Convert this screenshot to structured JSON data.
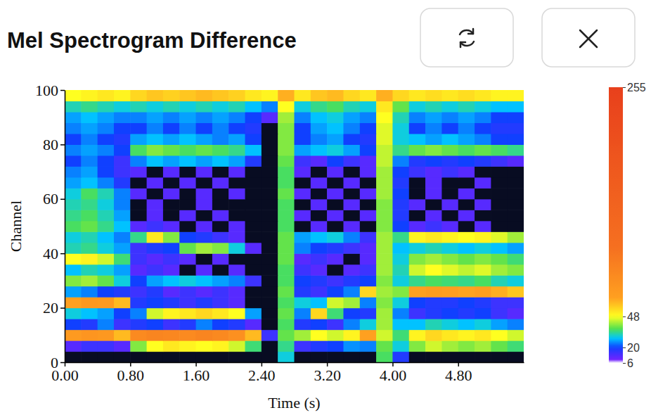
{
  "chart_data": {
    "type": "heatmap",
    "title": "Mel Spectrogram Difference",
    "x_label": "Time (s)",
    "y_label": "Channel",
    "x_edges": [
      0,
      0.2,
      0.4,
      0.6,
      0.8,
      1,
      1.2,
      1.4,
      1.6,
      1.8,
      2,
      2.2,
      2.4,
      2.6,
      2.8,
      3,
      3.2,
      3.4,
      3.6,
      3.8,
      4,
      4.2,
      4.4,
      4.6,
      4.8,
      5,
      5.2,
      5.4,
      5.6
    ],
    "y_edges": [
      0,
      4,
      8,
      12,
      16,
      20,
      24,
      28,
      32,
      36,
      40,
      44,
      48,
      52,
      56,
      60,
      64,
      68,
      72,
      76,
      80,
      84,
      88,
      92,
      96,
      100
    ],
    "z": [
      [
        2,
        3,
        3,
        3,
        4,
        3,
        3,
        4,
        3,
        3,
        3,
        2,
        2,
        30,
        3,
        3,
        2,
        3,
        4,
        36,
        18,
        3,
        3,
        2,
        3,
        3,
        2,
        2
      ],
      [
        12,
        15,
        15,
        12,
        40,
        48,
        52,
        50,
        48,
        50,
        45,
        35,
        4,
        34,
        15,
        18,
        20,
        25,
        24,
        38,
        30,
        40,
        45,
        42,
        40,
        42,
        38,
        35
      ],
      [
        70,
        75,
        72,
        60,
        85,
        90,
        88,
        85,
        90,
        86,
        80,
        60,
        15,
        38,
        42,
        48,
        45,
        50,
        65,
        45,
        35,
        50,
        55,
        52,
        50,
        52,
        48,
        45
      ],
      [
        20,
        18,
        24,
        15,
        18,
        20,
        15,
        18,
        24,
        20,
        18,
        12,
        3,
        36,
        18,
        20,
        15,
        24,
        30,
        42,
        28,
        28,
        32,
        30,
        28,
        30,
        26,
        24
      ],
      [
        30,
        28,
        26,
        20,
        24,
        45,
        50,
        52,
        55,
        52,
        48,
        26,
        4,
        38,
        24,
        55,
        35,
        20,
        18,
        42,
        24,
        15,
        18,
        20,
        18,
        20,
        15,
        12
      ],
      [
        65,
        72,
        70,
        60,
        18,
        20,
        18,
        15,
        18,
        15,
        12,
        4,
        3,
        36,
        30,
        28,
        45,
        42,
        24,
        40,
        30,
        20,
        18,
        18,
        20,
        18,
        15,
        15
      ],
      [
        26,
        24,
        20,
        18,
        15,
        18,
        12,
        15,
        12,
        15,
        12,
        4,
        3,
        38,
        18,
        15,
        20,
        24,
        55,
        42,
        40,
        65,
        68,
        66,
        64,
        66,
        62,
        58
      ],
      [
        40,
        42,
        38,
        30,
        20,
        26,
        28,
        30,
        28,
        26,
        24,
        15,
        3,
        36,
        20,
        18,
        15,
        18,
        20,
        40,
        30,
        34,
        36,
        35,
        34,
        36,
        32,
        30
      ],
      [
        28,
        32,
        30,
        26,
        12,
        15,
        12,
        4,
        12,
        4,
        12,
        4,
        2,
        36,
        15,
        12,
        4,
        12,
        15,
        42,
        32,
        45,
        48,
        46,
        44,
        46,
        42,
        40
      ],
      [
        48,
        50,
        45,
        35,
        15,
        12,
        15,
        12,
        4,
        12,
        4,
        3,
        2,
        38,
        12,
        15,
        12,
        4,
        12,
        42,
        30,
        40,
        42,
        40,
        38,
        40,
        38,
        35
      ],
      [
        32,
        34,
        30,
        26,
        15,
        18,
        20,
        38,
        42,
        40,
        30,
        12,
        3,
        38,
        24,
        20,
        18,
        15,
        12,
        42,
        28,
        30,
        32,
        30,
        28,
        30,
        28,
        26
      ],
      [
        30,
        32,
        28,
        24,
        34,
        52,
        40,
        20,
        18,
        15,
        12,
        4,
        2,
        38,
        26,
        28,
        30,
        24,
        15,
        42,
        34,
        50,
        52,
        50,
        48,
        50,
        46,
        42
      ],
      [
        36,
        38,
        34,
        28,
        12,
        15,
        12,
        4,
        12,
        4,
        12,
        3,
        2,
        36,
        4,
        12,
        4,
        12,
        4,
        40,
        20,
        12,
        15,
        12,
        4,
        12,
        4,
        3
      ],
      [
        34,
        36,
        32,
        26,
        4,
        12,
        4,
        12,
        4,
        12,
        4,
        3,
        2,
        36,
        12,
        4,
        12,
        4,
        12,
        40,
        18,
        4,
        12,
        4,
        12,
        4,
        3,
        3
      ],
      [
        32,
        34,
        30,
        24,
        4,
        12,
        4,
        4,
        12,
        4,
        4,
        3,
        2,
        36,
        4,
        12,
        4,
        12,
        4,
        40,
        18,
        12,
        4,
        12,
        4,
        12,
        4,
        3
      ],
      [
        30,
        36,
        32,
        24,
        12,
        4,
        12,
        4,
        12,
        4,
        12,
        3,
        2,
        38,
        12,
        4,
        12,
        4,
        12,
        42,
        20,
        4,
        12,
        4,
        12,
        4,
        3,
        3
      ],
      [
        26,
        28,
        24,
        18,
        4,
        12,
        4,
        12,
        4,
        12,
        4,
        3,
        2,
        36,
        4,
        12,
        4,
        12,
        4,
        42,
        18,
        4,
        12,
        4,
        4,
        12,
        4,
        3
      ],
      [
        24,
        26,
        20,
        15,
        12,
        4,
        12,
        4,
        12,
        4,
        12,
        3,
        2,
        36,
        12,
        4,
        12,
        4,
        12,
        42,
        20,
        15,
        12,
        15,
        12,
        4,
        3,
        3
      ],
      [
        20,
        24,
        20,
        15,
        24,
        28,
        26,
        28,
        26,
        28,
        26,
        18,
        3,
        38,
        15,
        12,
        20,
        15,
        12,
        44,
        24,
        18,
        20,
        18,
        20,
        18,
        15,
        12
      ],
      [
        24,
        26,
        24,
        20,
        36,
        40,
        38,
        36,
        38,
        36,
        34,
        28,
        4,
        40,
        26,
        28,
        30,
        26,
        20,
        44,
        34,
        38,
        40,
        38,
        36,
        38,
        36,
        34
      ],
      [
        20,
        24,
        20,
        18,
        26,
        28,
        26,
        28,
        26,
        24,
        26,
        20,
        3,
        40,
        20,
        24,
        26,
        20,
        18,
        46,
        30,
        28,
        26,
        28,
        26,
        24,
        20,
        20
      ],
      [
        24,
        26,
        24,
        20,
        20,
        24,
        20,
        24,
        20,
        24,
        20,
        18,
        4,
        40,
        20,
        26,
        28,
        24,
        20,
        46,
        30,
        20,
        24,
        20,
        24,
        20,
        18,
        18
      ],
      [
        26,
        28,
        26,
        24,
        24,
        26,
        24,
        26,
        24,
        26,
        24,
        20,
        12,
        42,
        24,
        28,
        30,
        26,
        24,
        48,
        32,
        24,
        26,
        24,
        26,
        24,
        20,
        20
      ],
      [
        32,
        34,
        32,
        30,
        32,
        30,
        32,
        30,
        32,
        30,
        32,
        28,
        24,
        48,
        30,
        34,
        36,
        32,
        30,
        52,
        38,
        30,
        32,
        30,
        32,
        30,
        28,
        28
      ],
      [
        48,
        50,
        52,
        50,
        55,
        58,
        56,
        58,
        60,
        58,
        56,
        52,
        50,
        62,
        52,
        58,
        60,
        55,
        52,
        62,
        55,
        52,
        54,
        52,
        54,
        52,
        50,
        50
      ]
    ],
    "xlim": [
      0,
      5.6
    ],
    "ylim": [
      0,
      100
    ],
    "xticks": [
      {
        "value": 0,
        "label": "0.00"
      },
      {
        "value": 0.8,
        "label": "0.80"
      },
      {
        "value": 1.6,
        "label": "1.60"
      },
      {
        "value": 2.4,
        "label": "2.40"
      },
      {
        "value": 3.2,
        "label": "3.20"
      },
      {
        "value": 4,
        "label": "4.00"
      },
      {
        "value": 4.8,
        "label": "4.80"
      }
    ],
    "yticks": [
      0,
      20,
      40,
      60,
      80,
      100
    ],
    "colorbar": {
      "range": [
        6,
        255
      ],
      "ticks": [
        6,
        20,
        48,
        255
      ]
    }
  }
}
